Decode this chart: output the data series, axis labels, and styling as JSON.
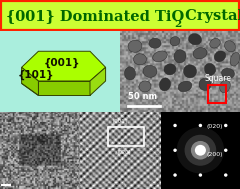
{
  "title_bg": "#ccff33",
  "title_border": "#ff2200",
  "title_color": "#006600",
  "crystal_bg": "#aaeedd",
  "crystal_top": "#aaff00",
  "crystal_front": "#88cc00",
  "crystal_right": "#99dd11",
  "crystal_bottom_bevel": "#77bb00",
  "crystal_edge": "#334400",
  "label_001": "{001}",
  "label_101": "{101}",
  "scale_bar_text": "50 nm",
  "square_label": "Square",
  "diff_label1": "(020)",
  "diff_label2": "(200)"
}
